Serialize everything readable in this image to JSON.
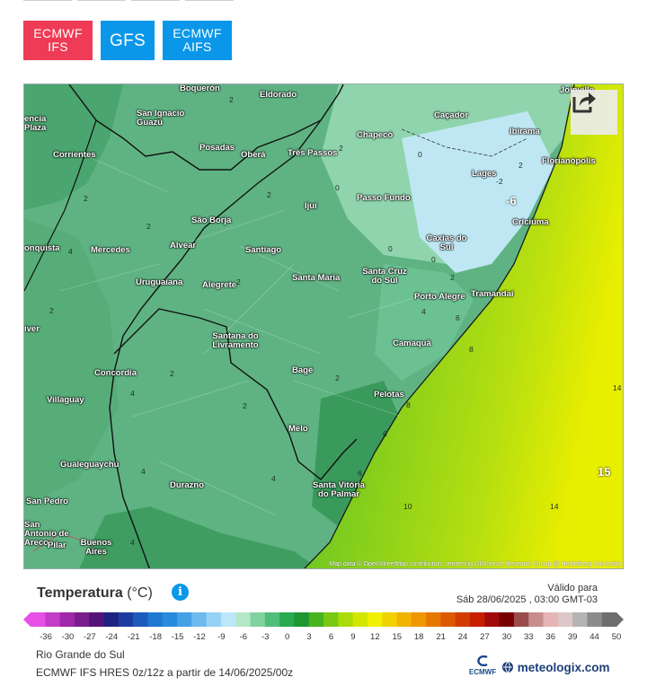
{
  "models": [
    {
      "line1": "ECMWF",
      "line2": "IFS",
      "color": "#ef3b56"
    },
    {
      "line1": "GFS",
      "line2": "",
      "color": "#0a97ea"
    },
    {
      "line1": "ECMWF",
      "line2": "AIFS",
      "color": "#0a97ea"
    }
  ],
  "map": {
    "cities": [
      "Boquerón",
      "Eldorado",
      "Joinville",
      "San Ignacio Guazú",
      "Caçador",
      "Posadas",
      "Oberá",
      "Chapecó",
      "Ibirama",
      "Corrientes",
      "Três Passos",
      "Florianópolis",
      "Lages",
      "Ijuí",
      "Passo Fundo",
      "São Borja",
      "Criciúma",
      "Alvear",
      "Caxias do Sul",
      "Mercedes",
      "Santiago",
      "Uruguaiana",
      "Alegrete",
      "Santa Maria",
      "Santa Cruz do Sul",
      "Porto Alegre",
      "Tramandaí",
      "Santana do Livramento",
      "Camaquã",
      "Concordia",
      "Bagé",
      "Villaguay",
      "Pelotas",
      "Melo",
      "Gualeguaychú",
      "Durazno",
      "Santa Vitória do Palmar",
      "Buenos Aires",
      "San Pedro",
      "San Antonio de Areco",
      "Pilar",
      "encia",
      "Plaza",
      "onquista",
      "iver"
    ],
    "isotherm_labels": [
      "2",
      "0",
      "-2",
      "-6",
      "4",
      "6",
      "8",
      "10",
      "14",
      "15"
    ],
    "attribution": "Map data © OpenStreetMap contributors, rendering GIScience Research Group @ Heidelberg University",
    "share_icon": "share-icon"
  },
  "legend": {
    "title": "Temperatura",
    "unit": "(°C)",
    "info_icon": "info-icon",
    "valid_label": "Válido para",
    "valid_time": "Sáb 28/06/2025 , 03:00 GMT-03",
    "scale_labels": [
      "-36",
      "-30",
      "-27",
      "-24",
      "-21",
      "-18",
      "-15",
      "-12",
      "-9",
      "-6",
      "-3",
      "0",
      "3",
      "6",
      "9",
      "12",
      "15",
      "18",
      "21",
      "24",
      "27",
      "30",
      "33",
      "36",
      "39",
      "44",
      "50"
    ],
    "scale_colors": [
      "#e650e6",
      "#c23cc8",
      "#a028aa",
      "#7a1e8c",
      "#55147a",
      "#1e2382",
      "#1e3ca0",
      "#1e5abe",
      "#1e78d2",
      "#288cdc",
      "#46a0e6",
      "#6eb9f0",
      "#96d2f5",
      "#bee6fa",
      "#b4e6c8",
      "#82d2a0",
      "#50be78",
      "#28aa50",
      "#1e9632",
      "#46b41e",
      "#78c814",
      "#aadc0a",
      "#d2e600",
      "#f0f000",
      "#f0d200",
      "#f0b400",
      "#f09600",
      "#e67800",
      "#dc5a00",
      "#d23c00",
      "#c81e00",
      "#a00a0a",
      "#780000",
      "#9b4b4b",
      "#c88c8c",
      "#e6b4b4",
      "#dcc8c8",
      "#b4b4b4",
      "#8c8c8c",
      "#6e6e6e"
    ]
  },
  "footer": {
    "region": "Rio Grande do Sul",
    "run": "ECMWF IFS HRES 0z/12z a partir de 14/06/2025/00z",
    "ecmwf_logo": "ECMWF",
    "brand": "meteologix.com"
  }
}
